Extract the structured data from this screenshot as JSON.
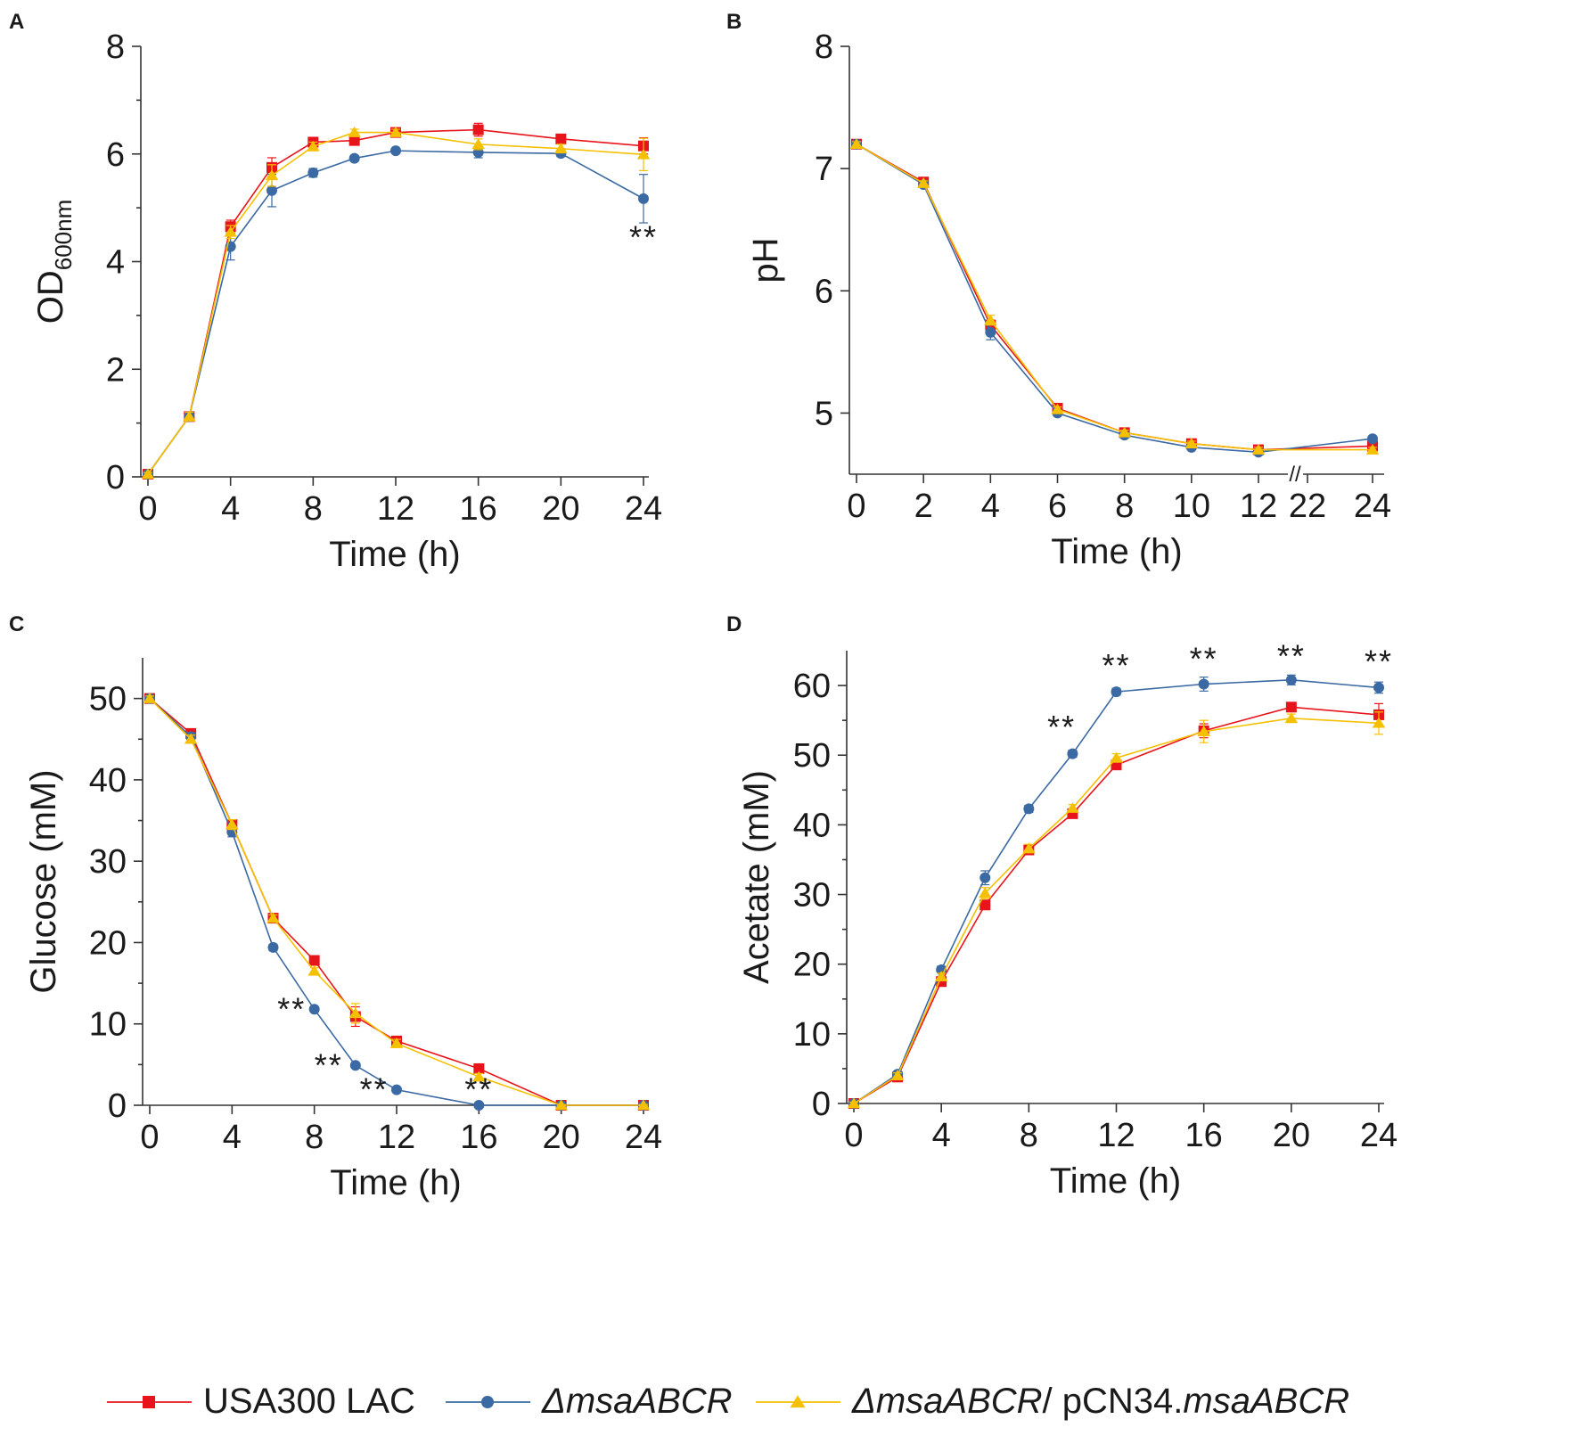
{
  "colors": {
    "USA300 LAC": "#e8141c",
    "ΔmsaABCR": "#3a69a3",
    "ΔmsaABCR/ pCN34.msaABCR": "#f5c000"
  },
  "legend": [
    {
      "marker": "square",
      "parts": [
        {
          "t": "USA300 LAC",
          "i": false
        }
      ]
    },
    {
      "marker": "circle",
      "parts": [
        {
          "t": "ΔmsaABCR",
          "i": true
        }
      ]
    },
    {
      "marker": "triangle",
      "parts": [
        {
          "t": "ΔmsaABCR",
          "i": true
        },
        {
          "t": "/ pCN34.",
          "i": false
        },
        {
          "t": "msaABCR",
          "i": true
        }
      ]
    }
  ],
  "chart_data": [
    {
      "panel": "A",
      "type": "line",
      "xlabel": "Time (h)",
      "ylabel": "OD",
      "ylabel_sub": "600nm",
      "xlim": [
        0,
        24
      ],
      "ylim": [
        0,
        8
      ],
      "xticks": [
        0,
        4,
        8,
        12,
        16,
        20,
        24
      ],
      "yticks": [
        0,
        2,
        4,
        6,
        8
      ],
      "minor_y": true,
      "series": [
        {
          "name": "USA300 LAC",
          "marker": "square",
          "x": [
            0,
            2,
            4,
            6,
            8,
            10,
            12,
            16,
            20,
            24
          ],
          "y": [
            0.05,
            1.12,
            4.65,
            5.75,
            6.22,
            6.25,
            6.4,
            6.45,
            6.28,
            6.15
          ],
          "err": [
            0.03,
            0.08,
            0.12,
            0.18,
            0.08,
            0.08,
            0.08,
            0.12,
            0.08,
            0.15
          ]
        },
        {
          "name": "ΔmsaABCR",
          "marker": "circle",
          "x": [
            0,
            2,
            4,
            6,
            8,
            10,
            12,
            16,
            20,
            24
          ],
          "y": [
            0.05,
            1.12,
            4.28,
            5.32,
            5.65,
            5.92,
            6.06,
            6.03,
            6.01,
            5.17
          ],
          "err": [
            0.03,
            0.08,
            0.25,
            0.3,
            0.08,
            0.05,
            0.05,
            0.1,
            0.06,
            0.45
          ]
        },
        {
          "name": "ΔmsaABCR/ pCN34.msaABCR",
          "marker": "triangle",
          "x": [
            0,
            2,
            4,
            6,
            8,
            10,
            12,
            16,
            20,
            24
          ],
          "y": [
            0.05,
            1.12,
            4.55,
            5.6,
            6.14,
            6.4,
            6.4,
            6.18,
            6.1,
            5.99
          ],
          "err": [
            0.03,
            0.08,
            0.12,
            0.2,
            0.08,
            0.06,
            0.06,
            0.1,
            0.08,
            0.3
          ]
        }
      ],
      "annotations": [
        {
          "x": 24,
          "y": 4.45,
          "text": "**"
        }
      ]
    },
    {
      "panel": "B",
      "type": "line",
      "xlabel": "Time (h)",
      "ylabel": "pH",
      "xlim": [
        0,
        24
      ],
      "ylim": [
        4.5,
        8
      ],
      "xticks": [
        0,
        2,
        4,
        6,
        8,
        10,
        12,
        22,
        24
      ],
      "yticks": [
        5,
        6,
        7,
        8
      ],
      "axis_break": {
        "between": [
          12,
          22
        ],
        "label": "//"
      },
      "series": [
        {
          "name": "USA300 LAC",
          "marker": "square",
          "x": [
            0,
            2,
            4,
            6,
            8,
            10,
            12,
            24
          ],
          "y": [
            7.2,
            6.89,
            5.72,
            5.04,
            4.84,
            4.75,
            4.7,
            4.73
          ],
          "err": [
            0.02,
            0.02,
            0.04,
            0.02,
            0.02,
            0.02,
            0.02,
            0.02
          ]
        },
        {
          "name": "ΔmsaABCR",
          "marker": "circle",
          "x": [
            0,
            2,
            4,
            6,
            8,
            10,
            12,
            24
          ],
          "y": [
            7.2,
            6.87,
            5.66,
            5.0,
            4.82,
            4.72,
            4.68,
            4.79
          ],
          "err": [
            0.02,
            0.02,
            0.06,
            0.02,
            0.02,
            0.02,
            0.02,
            0.02
          ]
        },
        {
          "name": "ΔmsaABCR/ pCN34.msaABCR",
          "marker": "triangle",
          "x": [
            0,
            2,
            4,
            6,
            8,
            10,
            12,
            24
          ],
          "y": [
            7.2,
            6.88,
            5.76,
            5.03,
            4.84,
            4.75,
            4.7,
            4.7
          ],
          "err": [
            0.02,
            0.02,
            0.04,
            0.02,
            0.02,
            0.02,
            0.02,
            0.02
          ]
        }
      ],
      "annotations": []
    },
    {
      "panel": "C",
      "type": "line",
      "xlabel": "Time (h)",
      "ylabel": "Glucose (mM)",
      "xlim": [
        0,
        24
      ],
      "ylim": [
        0,
        55
      ],
      "xticks": [
        0,
        4,
        8,
        12,
        16,
        20,
        24
      ],
      "yticks": [
        0,
        10,
        20,
        30,
        40,
        50
      ],
      "minor_y": true,
      "series": [
        {
          "name": "USA300 LAC",
          "marker": "square",
          "x": [
            0,
            2,
            4,
            6,
            8,
            10,
            12,
            16,
            20,
            24
          ],
          "y": [
            50,
            45.7,
            34.5,
            23,
            17.8,
            10.9,
            7.9,
            4.5,
            0,
            0
          ],
          "err": [
            0.3,
            0.5,
            0.6,
            0.4,
            0.4,
            1.2,
            0.5,
            0.4,
            0.1,
            0.1
          ]
        },
        {
          "name": "ΔmsaABCR",
          "marker": "circle",
          "x": [
            0,
            2,
            4,
            6,
            8,
            10,
            12,
            16,
            20,
            24
          ],
          "y": [
            50,
            45.3,
            33.6,
            19.4,
            11.8,
            4.9,
            1.9,
            0,
            0,
            0
          ],
          "err": [
            0.3,
            0.5,
            0.6,
            0.4,
            0.3,
            0.3,
            0.3,
            0.1,
            0.1,
            0.1
          ]
        },
        {
          "name": "ΔmsaABCR/ pCN34.msaABCR",
          "marker": "triangle",
          "x": [
            0,
            2,
            4,
            6,
            8,
            10,
            12,
            16,
            20,
            24
          ],
          "y": [
            50,
            45,
            34.5,
            23,
            16.5,
            11.3,
            7.6,
            3.5,
            0,
            0
          ],
          "err": [
            0.3,
            0.5,
            0.6,
            0.4,
            0.4,
            1.2,
            0.5,
            0.4,
            0.1,
            0.1
          ]
        }
      ],
      "annotations": [
        {
          "x": 6.9,
          "y": 11.8,
          "text": "**"
        },
        {
          "x": 8.7,
          "y": 4.9,
          "text": "**"
        },
        {
          "x": 10.9,
          "y": 1.9,
          "text": "**"
        },
        {
          "x": 16,
          "y": 1.9,
          "text": "**"
        }
      ]
    },
    {
      "panel": "D",
      "type": "line",
      "xlabel": "Time (h)",
      "ylabel": "Acetate (mM)",
      "xlim": [
        0,
        24
      ],
      "ylim": [
        0,
        65
      ],
      "xticks": [
        0,
        4,
        8,
        12,
        16,
        20,
        24
      ],
      "yticks": [
        0,
        10,
        20,
        30,
        40,
        50,
        60
      ],
      "minor_y": true,
      "series": [
        {
          "name": "USA300 LAC",
          "marker": "square",
          "x": [
            0,
            2,
            4,
            6,
            8,
            10,
            12,
            16,
            20,
            24
          ],
          "y": [
            0,
            3.8,
            17.5,
            28.5,
            36.4,
            41.6,
            48.6,
            53.5,
            56.9,
            55.8
          ],
          "err": [
            0.2,
            0.4,
            0.5,
            0.6,
            0.6,
            0.5,
            0.6,
            1.0,
            0.6,
            1.6
          ]
        },
        {
          "name": "ΔmsaABCR",
          "marker": "circle",
          "x": [
            0,
            2,
            4,
            6,
            8,
            10,
            12,
            16,
            20,
            24
          ],
          "y": [
            0,
            4.2,
            19.2,
            32.4,
            42.3,
            50.2,
            59.1,
            60.2,
            60.8,
            59.7
          ],
          "err": [
            0.2,
            0.4,
            0.5,
            1.0,
            0.5,
            0.5,
            0.5,
            1.0,
            0.7,
            0.8
          ]
        },
        {
          "name": "ΔmsaABCR/ pCN34.msaABCR",
          "marker": "triangle",
          "x": [
            0,
            2,
            4,
            6,
            8,
            10,
            12,
            16,
            20,
            24
          ],
          "y": [
            0,
            4.0,
            18.2,
            30.2,
            36.6,
            42.4,
            49.6,
            53.4,
            55.3,
            54.6
          ],
          "err": [
            0.2,
            0.4,
            0.5,
            0.8,
            0.6,
            0.5,
            0.6,
            1.6,
            0.6,
            1.6
          ]
        }
      ],
      "annotations": [
        {
          "x": 9.5,
          "y": 54,
          "text": "**"
        },
        {
          "x": 12,
          "y": 62.8,
          "text": "**"
        },
        {
          "x": 16,
          "y": 63.8,
          "text": "**"
        },
        {
          "x": 20,
          "y": 64.2,
          "text": "**"
        },
        {
          "x": 24,
          "y": 63.4,
          "text": "**"
        }
      ]
    }
  ]
}
